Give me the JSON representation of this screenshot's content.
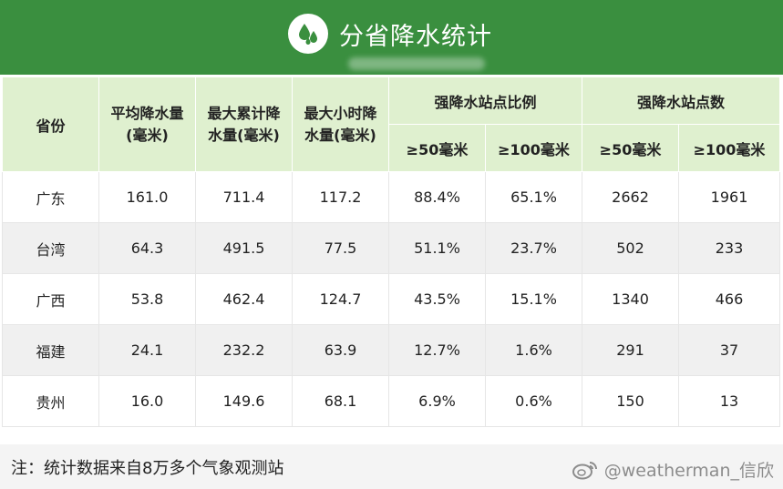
{
  "header": {
    "title": "分省降水统计",
    "icon": "raindrops-icon"
  },
  "table": {
    "headers": {
      "province": "省份",
      "avg_rain_line1": "平均降水量",
      "avg_rain_line2": "(毫米)",
      "max_cum_line1": "最大累计降",
      "max_cum_line2": "水量(毫米)",
      "max_hour_line1": "最大小时降",
      "max_hour_line2": "水量(毫米)",
      "ratio_group": "强降水站点比例",
      "count_group": "强降水站点数",
      "ratio_50": "≥50毫米",
      "ratio_100": "≥100毫米",
      "count_50": "≥50毫米",
      "count_100": "≥100毫米"
    },
    "rows": [
      {
        "province": "广东",
        "avg": "161.0",
        "max_cum": "711.4",
        "max_hour": "117.2",
        "ratio_50": "88.4%",
        "ratio_100": "65.1%",
        "count_50": "2662",
        "count_100": "1961"
      },
      {
        "province": "台湾",
        "avg": "64.3",
        "max_cum": "491.5",
        "max_hour": "77.5",
        "ratio_50": "51.1%",
        "ratio_100": "23.7%",
        "count_50": "502",
        "count_100": "233"
      },
      {
        "province": "广西",
        "avg": "53.8",
        "max_cum": "462.4",
        "max_hour": "124.7",
        "ratio_50": "43.5%",
        "ratio_100": "15.1%",
        "count_50": "1340",
        "count_100": "466"
      },
      {
        "province": "福建",
        "avg": "24.1",
        "max_cum": "232.2",
        "max_hour": "63.9",
        "ratio_50": "12.7%",
        "ratio_100": "1.6%",
        "count_50": "291",
        "count_100": "37"
      },
      {
        "province": "贵州",
        "avg": "16.0",
        "max_cum": "149.6",
        "max_hour": "68.1",
        "ratio_50": "6.9%",
        "ratio_100": "0.6%",
        "count_50": "150",
        "count_100": "13"
      }
    ]
  },
  "note": "注：统计数据来自8万多个气象观测站",
  "watermark": "@weatherman_信欣",
  "colors": {
    "header_bg": "#3a8f3f",
    "table_header_bg": "#dff0cf",
    "row_alt_bg": "#f0f0f0",
    "watermark": "#8c8c8c"
  }
}
